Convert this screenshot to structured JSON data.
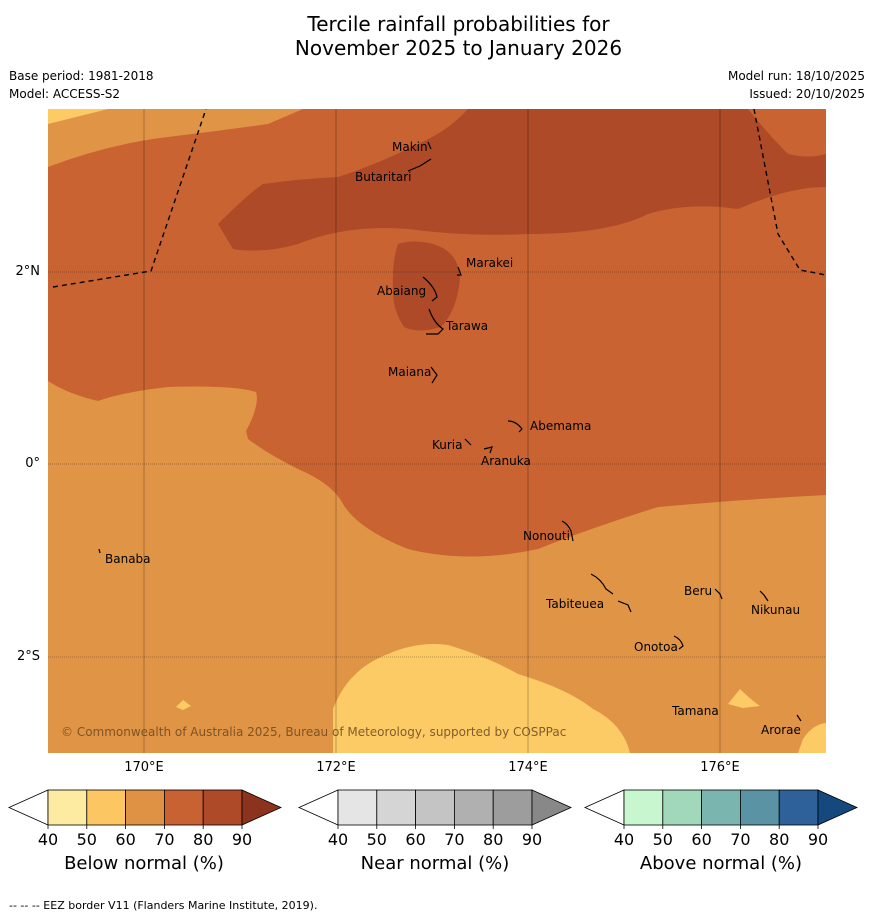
{
  "title": {
    "line1": "Tercile rainfall probabilities for",
    "line2": "November 2025 to January 2026"
  },
  "meta": {
    "base_period": "Base period: 1981-2018",
    "model": "Model: ACCESS-S2",
    "model_run": "Model run: 18/10/2025",
    "issued": "Issued: 20/10/2025"
  },
  "map": {
    "copyright": "© Commonwealth of Australia 2025, Bureau of Meteorology, supported by COSPPac",
    "lat_labels": [
      "2°N",
      "0°",
      "2°S"
    ],
    "lon_labels": [
      "170°E",
      "172°E",
      "174°E",
      "176°E"
    ],
    "places": [
      "Makin",
      "Butaritari",
      "Marakei",
      "Abaiang",
      "Tarawa",
      "Maiana",
      "Abemama",
      "Kuria",
      "Aranuka",
      "Nonouti",
      "Banaba",
      "Beru",
      "Nikunau",
      "Tabiteuea",
      "Onotoa",
      "Tamana",
      "Arorae"
    ],
    "colors": {
      "below_50": "#fdcb66",
      "below_60": "#e09445",
      "below_70": "#c96332",
      "below_80": "#ae4a27"
    }
  },
  "colorbars": [
    {
      "title": "Below normal (%)",
      "ticks": [
        "40",
        "50",
        "60",
        "70",
        "80",
        "90"
      ],
      "colors": [
        "#ffffff",
        "#feeba2",
        "#fcc763",
        "#df9244",
        "#c86233",
        "#ae4a27",
        "#8b331d"
      ]
    },
    {
      "title": "Near normal (%)",
      "ticks": [
        "40",
        "50",
        "60",
        "70",
        "80",
        "90"
      ],
      "colors": [
        "#ffffff",
        "#e5e5e5",
        "#d5d5d5",
        "#c4c4c4",
        "#b0b0b0",
        "#9d9d9d",
        "#888888"
      ]
    },
    {
      "title": "Above normal (%)",
      "ticks": [
        "40",
        "50",
        "60",
        "70",
        "80",
        "90"
      ],
      "colors": [
        "#ffffff",
        "#c8f7cf",
        "#a1d8bc",
        "#7bb5b0",
        "#5a93a3",
        "#2e6199",
        "#15487d"
      ]
    }
  ],
  "footnote": "--  --  -- EEZ border V11 (Flanders Marine Institute, 2019)."
}
